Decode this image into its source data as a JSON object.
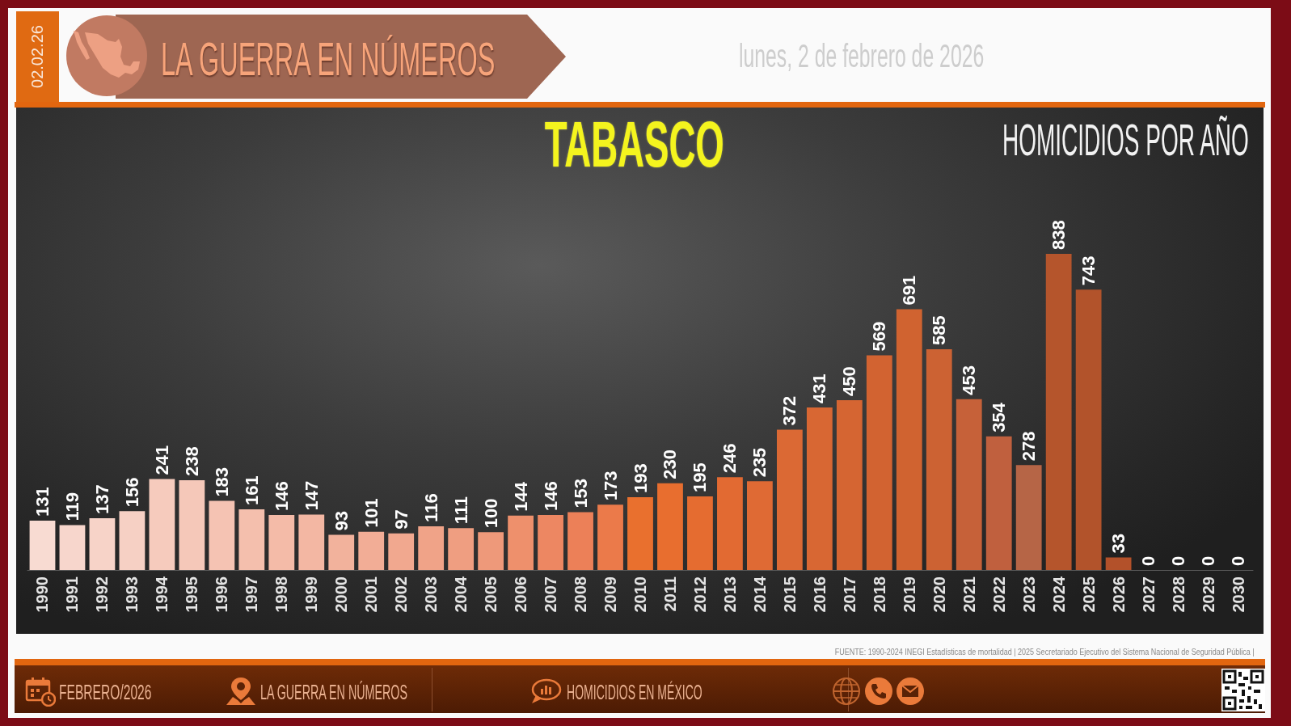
{
  "chart_data": {
    "type": "bar",
    "title": "TABASCO",
    "subtitle": "HOMICIDIOS POR AÑO",
    "categories": [
      "1990",
      "1991",
      "1992",
      "1993",
      "1994",
      "1995",
      "1996",
      "1997",
      "1998",
      "1999",
      "2000",
      "2001",
      "2002",
      "2003",
      "2004",
      "2005",
      "2006",
      "2007",
      "2008",
      "2009",
      "2010",
      "2011",
      "2012",
      "2013",
      "2014",
      "2015",
      "2016",
      "2017",
      "2018",
      "2019",
      "2020",
      "2021",
      "2022",
      "2023",
      "2024",
      "2025",
      "2026",
      "2027",
      "2028",
      "2029",
      "2030"
    ],
    "values": [
      131,
      119,
      137,
      156,
      241,
      238,
      183,
      161,
      146,
      147,
      93,
      101,
      97,
      116,
      111,
      100,
      144,
      146,
      153,
      173,
      193,
      230,
      195,
      246,
      235,
      372,
      431,
      450,
      569,
      691,
      585,
      453,
      354,
      278,
      838,
      743,
      33,
      0,
      0,
      0,
      0
    ],
    "colors": [
      "#f8dbd2",
      "#f7d6cc",
      "#f7d3c8",
      "#f6d0c4",
      "#f6cbbd",
      "#f5c8b9",
      "#f5c3b3",
      "#f4bfad",
      "#f4bba8",
      "#f3b7a3",
      "#f2b29c",
      "#f2ad96",
      "#f1a88f",
      "#f0a388",
      "#ef9e81",
      "#ee997a",
      "#ee906c",
      "#ed8762",
      "#ec8058",
      "#eb7a4a",
      "#e9702e",
      "#e86e2f",
      "#e56c30",
      "#e26a32",
      "#df6a34",
      "#db6934",
      "#d86733",
      "#d56532",
      "#d26331",
      "#d06330",
      "#cc6233",
      "#c66139",
      "#c0603e",
      "#b66546",
      "#b5552c",
      "#b2532b",
      "#b3512a",
      "#b3512a",
      "#b3512a",
      "#b3512a",
      "#b3512a"
    ],
    "data_labels": true,
    "annotations": [
      "02.02.26",
      "LA GUERRA EN NÚMEROS",
      "lunes, 2 de febrero de 2026",
      "FUENTE: 1990-2024 INEGI Estadísticas de mortalidad | 2025 Secretariado Ejecutivo del Sistema Nacional de Seguridad Pública |",
      "FEBRERO/2026",
      "LA GUERRA EN NÚMEROS",
      "HOMICIDIOS EN MÉXICO"
    ]
  }
}
